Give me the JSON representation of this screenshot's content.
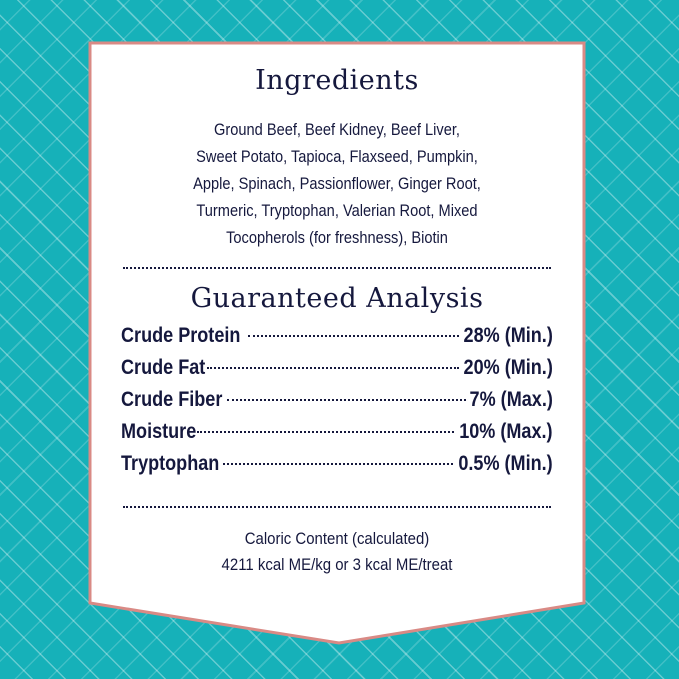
{
  "colors": {
    "background": "#16b1b9",
    "card": "#ffffff",
    "border": "#d98a85",
    "text": "#15183d"
  },
  "ingredients": {
    "title": "Ingredients",
    "lines": [
      "Ground Beef, Beef Kidney, Beef Liver,",
      "Sweet Potato, Tapioca, Flaxseed, Pumpkin,",
      "Apple, Spinach, Passionflower, Ginger Root,",
      "Turmeric, Tryptophan, Valerian Root, Mixed",
      "Tocopherols (for freshness), Biotin"
    ]
  },
  "analysis": {
    "title": "Guaranteed Analysis",
    "rows": [
      {
        "label": "Crude Protein",
        "value": "28% (Min.)"
      },
      {
        "label": "Crude Fat",
        "value": "20% (Min.)"
      },
      {
        "label": "Crude Fiber",
        "value": "7% (Max.)"
      },
      {
        "label": "Moisture",
        "value": "10% (Max.)"
      },
      {
        "label": "Tryptophan",
        "value": "0.5% (Min.)"
      }
    ]
  },
  "caloric": {
    "title": "Caloric Content (calculated)",
    "value": "4211 kcal ME/kg or 3 kcal ME/treat"
  }
}
